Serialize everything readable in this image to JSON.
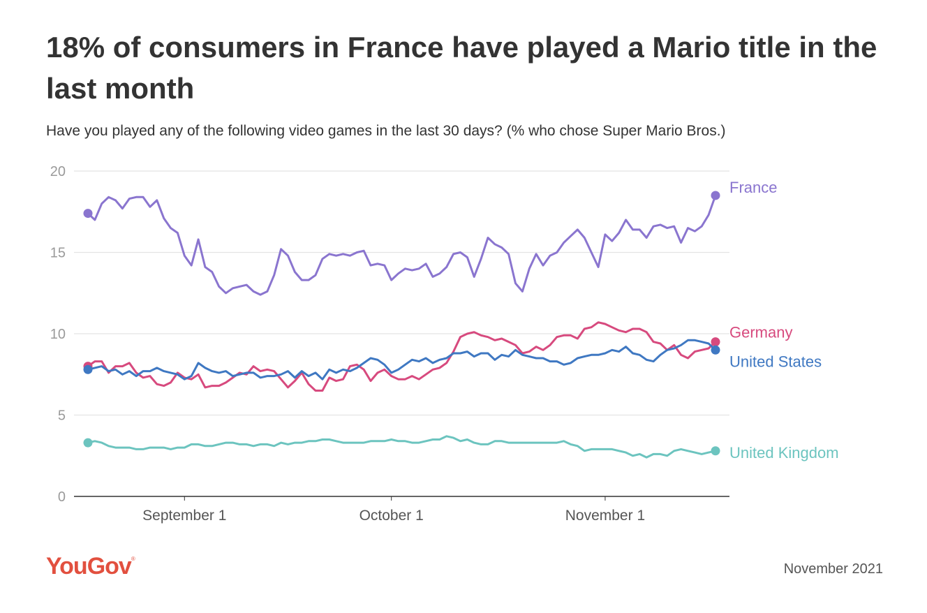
{
  "title": "18% of consumers in France have played a Mario title in the last month",
  "subtitle": "Have you played any of the following video games in the last 30 days? (% who chose Super Mario Bros.)",
  "footer": {
    "logo": "YouGov",
    "date": "November 2021"
  },
  "chart_data": {
    "type": "line",
    "title": "18% of consumers in France have played a Mario title in the last month",
    "subtitle": "Have you played any of the following video games in the last 30 days? (% who chose Super Mario Bros.)",
    "xlabel": "",
    "ylabel": "",
    "ylim": [
      0,
      20
    ],
    "yticks": [
      0,
      5,
      10,
      15,
      20
    ],
    "x_start": "2021-08-18",
    "x_ticks": [
      {
        "label": "September 1",
        "date": "2021-09-01"
      },
      {
        "label": "October 1",
        "date": "2021-10-01"
      },
      {
        "label": "November 1",
        "date": "2021-11-01"
      }
    ],
    "grid": true,
    "legend": "labels at line ends (right)",
    "series": [
      {
        "name": "France",
        "color": "#8a75cf",
        "values": [
          17.4,
          17.0,
          18.0,
          18.4,
          18.2,
          17.7,
          18.3,
          18.4,
          18.4,
          17.8,
          18.2,
          17.1,
          16.5,
          16.2,
          14.8,
          14.2,
          15.8,
          14.1,
          13.8,
          12.9,
          12.5,
          12.8,
          12.9,
          13.0,
          12.6,
          12.4,
          12.6,
          13.6,
          15.2,
          14.8,
          13.8,
          13.3,
          13.3,
          13.6,
          14.6,
          14.9,
          14.8,
          14.9,
          14.8,
          15.0,
          15.1,
          14.2,
          14.3,
          14.2,
          13.3,
          13.7,
          14.0,
          13.9,
          14.0,
          14.3,
          13.5,
          13.7,
          14.1,
          14.9,
          15.0,
          14.7,
          13.5,
          14.6,
          15.9,
          15.5,
          15.3,
          14.9,
          13.1,
          12.6,
          14.0,
          14.9,
          14.2,
          14.8,
          15.0,
          15.6,
          16.0,
          16.4,
          15.9,
          15.0,
          14.1,
          16.1,
          15.7,
          16.2,
          17.0,
          16.4,
          16.4,
          15.9,
          16.6,
          16.7,
          16.5,
          16.6,
          15.6,
          16.5,
          16.3,
          16.6,
          17.3,
          18.5
        ]
      },
      {
        "name": "Germany",
        "color": "#d74a7e",
        "values": [
          8.0,
          8.3,
          8.3,
          7.6,
          8.0,
          8.0,
          8.2,
          7.6,
          7.3,
          7.4,
          6.9,
          6.8,
          7.0,
          7.6,
          7.3,
          7.2,
          7.5,
          6.7,
          6.8,
          6.8,
          7.0,
          7.3,
          7.6,
          7.5,
          8.0,
          7.7,
          7.8,
          7.7,
          7.2,
          6.7,
          7.1,
          7.6,
          6.9,
          6.5,
          6.5,
          7.3,
          7.1,
          7.2,
          8.0,
          8.1,
          7.8,
          7.1,
          7.6,
          7.8,
          7.4,
          7.2,
          7.2,
          7.4,
          7.2,
          7.5,
          7.8,
          7.9,
          8.2,
          8.9,
          9.8,
          10.0,
          10.1,
          9.9,
          9.8,
          9.6,
          9.7,
          9.5,
          9.3,
          8.8,
          8.9,
          9.2,
          9.0,
          9.3,
          9.8,
          9.9,
          9.9,
          9.7,
          10.3,
          10.4,
          10.7,
          10.6,
          10.4,
          10.2,
          10.1,
          10.3,
          10.3,
          10.1,
          9.5,
          9.4,
          9.0,
          9.3,
          8.7,
          8.5,
          8.9,
          9.0,
          9.1,
          9.5
        ]
      },
      {
        "name": "United States",
        "color": "#3f78c2",
        "values": [
          7.8,
          7.9,
          8.0,
          7.7,
          7.8,
          7.5,
          7.7,
          7.4,
          7.7,
          7.7,
          7.9,
          7.7,
          7.6,
          7.5,
          7.2,
          7.4,
          8.2,
          7.9,
          7.7,
          7.6,
          7.7,
          7.4,
          7.5,
          7.6,
          7.6,
          7.3,
          7.4,
          7.4,
          7.5,
          7.7,
          7.3,
          7.7,
          7.4,
          7.6,
          7.2,
          7.8,
          7.6,
          7.8,
          7.7,
          7.9,
          8.2,
          8.5,
          8.4,
          8.1,
          7.6,
          7.8,
          8.1,
          8.4,
          8.3,
          8.5,
          8.2,
          8.4,
          8.5,
          8.8,
          8.8,
          8.9,
          8.6,
          8.8,
          8.8,
          8.4,
          8.7,
          8.6,
          9.0,
          8.7,
          8.6,
          8.5,
          8.5,
          8.3,
          8.3,
          8.1,
          8.2,
          8.5,
          8.6,
          8.7,
          8.7,
          8.8,
          9.0,
          8.9,
          9.2,
          8.8,
          8.7,
          8.4,
          8.3,
          8.7,
          9.0,
          9.1,
          9.3,
          9.6,
          9.6,
          9.5,
          9.4,
          9.0
        ]
      },
      {
        "name": "United Kingdom",
        "color": "#6cc4bf",
        "values": [
          3.3,
          3.4,
          3.3,
          3.1,
          3.0,
          3.0,
          3.0,
          2.9,
          2.9,
          3.0,
          3.0,
          3.0,
          2.9,
          3.0,
          3.0,
          3.2,
          3.2,
          3.1,
          3.1,
          3.2,
          3.3,
          3.3,
          3.2,
          3.2,
          3.1,
          3.2,
          3.2,
          3.1,
          3.3,
          3.2,
          3.3,
          3.3,
          3.4,
          3.4,
          3.5,
          3.5,
          3.4,
          3.3,
          3.3,
          3.3,
          3.3,
          3.4,
          3.4,
          3.4,
          3.5,
          3.4,
          3.4,
          3.3,
          3.3,
          3.4,
          3.5,
          3.5,
          3.7,
          3.6,
          3.4,
          3.5,
          3.3,
          3.2,
          3.2,
          3.4,
          3.4,
          3.3,
          3.3,
          3.3,
          3.3,
          3.3,
          3.3,
          3.3,
          3.3,
          3.4,
          3.2,
          3.1,
          2.8,
          2.9,
          2.9,
          2.9,
          2.9,
          2.8,
          2.7,
          2.5,
          2.6,
          2.4,
          2.6,
          2.6,
          2.5,
          2.8,
          2.9,
          2.8,
          2.7,
          2.6,
          2.7,
          2.8
        ]
      }
    ]
  }
}
